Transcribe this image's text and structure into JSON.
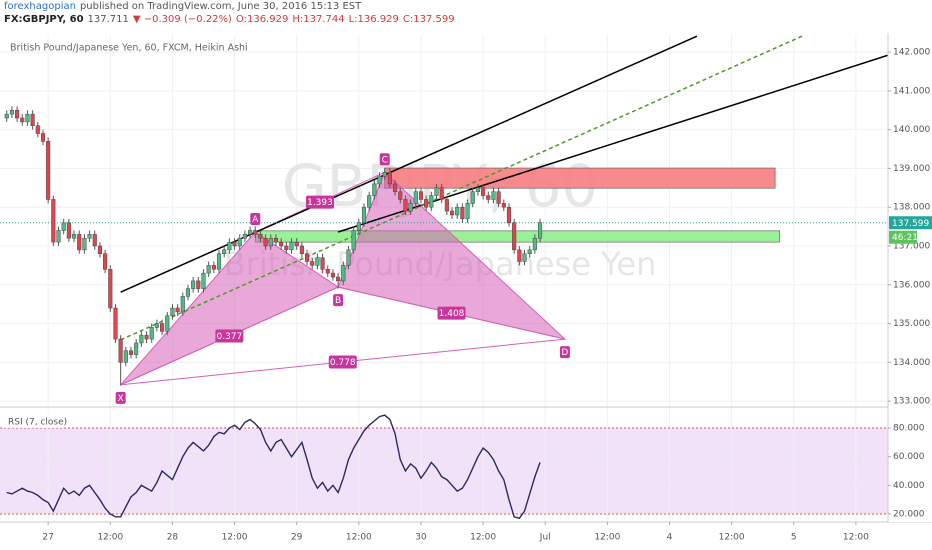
{
  "chart_data": {
    "type": "candlestick",
    "author": "forexhagopian",
    "published": "published on TradingView.com, June 30, 2016 15:13 EST",
    "symbol": "FX:GBPJPY, 60",
    "last": "137.711",
    "change": "▼ −0.309 (−0.22%)",
    "ohlc_text": [
      "O:136.929",
      "H:137.744",
      "L:136.929",
      "C:137.599"
    ],
    "title": "British Pound/Japanese Yen, 60, FXCM, Heikin Ashi",
    "watermark": [
      "GBPJPY, 60",
      "British Pound/Japanese Yen"
    ],
    "xlim": [
      -9.3,
      162.2
    ],
    "xticks": [
      {
        "value": 0,
        "label": "27"
      },
      {
        "value": 12,
        "label": "12:00"
      },
      {
        "value": 24,
        "label": "28"
      },
      {
        "value": 36,
        "label": "12:00"
      },
      {
        "value": 48,
        "label": "29"
      },
      {
        "value": 60,
        "label": "12:00"
      },
      {
        "value": 72,
        "label": "30"
      },
      {
        "value": 84,
        "label": "12:00"
      },
      {
        "value": 96,
        "label": "Jul"
      },
      {
        "value": 108,
        "label": "12:00"
      },
      {
        "value": 120,
        "label": "4"
      },
      {
        "value": 132,
        "label": "12:00"
      },
      {
        "value": 144,
        "label": "5"
      },
      {
        "value": 156,
        "label": "12:00"
      }
    ],
    "ylim": [
      132.9,
      142.44
    ],
    "yticks": [
      {
        "value": 133,
        "label": "133.000"
      },
      {
        "value": 134,
        "label": "134.000"
      },
      {
        "value": 135,
        "label": "135.000"
      },
      {
        "value": 136,
        "label": "136.000"
      },
      {
        "value": 137,
        "label": "137.000"
      },
      {
        "value": 138,
        "label": "138.000"
      },
      {
        "value": 139,
        "label": "139.000"
      },
      {
        "value": 140,
        "label": "140.000"
      },
      {
        "value": 141,
        "label": "141.000"
      },
      {
        "value": 142,
        "label": "142.000"
      }
    ],
    "grid": true,
    "up_color": "#53b987",
    "down_color": "#e0444f",
    "wick_color": "#555555",
    "x": [
      -8,
      -7,
      -6,
      -5,
      -4,
      -3,
      -2,
      -1,
      0,
      1,
      2,
      3,
      4,
      5,
      6,
      7,
      8,
      9,
      10,
      11,
      12,
      13,
      14,
      15,
      16,
      17,
      18,
      19,
      20,
      21,
      22,
      23,
      24,
      25,
      26,
      27,
      28,
      29,
      30,
      31,
      32,
      33,
      34,
      35,
      36,
      37,
      38,
      39,
      40,
      41,
      42,
      43,
      44,
      45,
      46,
      47,
      48,
      49,
      50,
      51,
      52,
      53,
      54,
      55,
      56,
      57,
      58,
      59,
      60,
      61,
      62,
      63,
      64,
      65,
      66,
      67,
      68,
      69,
      70,
      71,
      72,
      73,
      74,
      75,
      76,
      77,
      78,
      79,
      80,
      81,
      82,
      83,
      84,
      85,
      86,
      87,
      88,
      89,
      90,
      91,
      92,
      93,
      94,
      95
    ],
    "open": [
      140.3,
      140.4,
      140.5,
      140.3,
      140.2,
      140.4,
      140.1,
      139.9,
      139.7,
      138.2,
      137.1,
      137.4,
      137.6,
      137.2,
      137.3,
      136.9,
      137.2,
      137.3,
      137.0,
      136.8,
      136.4,
      135.4,
      134.6,
      134.0,
      134.3,
      134.2,
      134.5,
      134.7,
      134.6,
      134.9,
      135.0,
      134.8,
      135.2,
      135.4,
      135.3,
      135.7,
      135.9,
      136.1,
      135.9,
      136.3,
      136.5,
      136.4,
      136.8,
      136.9,
      137.1,
      137.0,
      137.2,
      137.3,
      137.4,
      137.3,
      137.2,
      137.0,
      137.2,
      137.1,
      137.0,
      136.9,
      137.1,
      137.0,
      136.8,
      136.6,
      136.5,
      136.7,
      136.4,
      136.3,
      136.2,
      136.1,
      136.5,
      136.9,
      137.4,
      137.6,
      138.0,
      138.3,
      138.6,
      138.8,
      138.9,
      138.6,
      138.4,
      138.2,
      137.9,
      138.1,
      138.4,
      138.2,
      138.0,
      138.3,
      138.5,
      138.2,
      137.9,
      137.8,
      138.0,
      137.7,
      138.1,
      138.4,
      138.5,
      138.3,
      138.2,
      138.4,
      138.1,
      138.0,
      137.6,
      136.9,
      136.6,
      136.8,
      136.9,
      137.2
    ],
    "high": [
      140.5,
      140.6,
      140.6,
      140.4,
      140.5,
      140.5,
      140.2,
      140.0,
      139.8,
      138.3,
      137.5,
      137.7,
      137.7,
      137.4,
      137.4,
      137.3,
      137.4,
      137.4,
      137.1,
      136.9,
      136.5,
      135.5,
      134.7,
      134.4,
      134.4,
      134.6,
      134.8,
      134.8,
      135.0,
      135.1,
      135.1,
      135.3,
      135.5,
      135.5,
      135.8,
      136.0,
      136.2,
      136.2,
      136.4,
      136.6,
      136.6,
      136.9,
      137.0,
      137.2,
      137.2,
      137.3,
      137.4,
      137.5,
      137.5,
      137.4,
      137.3,
      137.3,
      137.3,
      137.2,
      137.1,
      137.2,
      137.2,
      137.1,
      136.9,
      136.7,
      136.8,
      136.8,
      136.5,
      136.4,
      136.3,
      136.6,
      137.0,
      137.5,
      137.7,
      138.1,
      138.4,
      138.7,
      138.9,
      139.0,
      139.0,
      138.7,
      138.5,
      138.3,
      138.2,
      138.5,
      138.5,
      138.3,
      138.4,
      138.6,
      138.6,
      138.3,
      138.0,
      138.1,
      138.1,
      138.2,
      138.5,
      138.6,
      138.6,
      138.4,
      138.5,
      138.5,
      138.2,
      138.1,
      137.7,
      137.0,
      136.9,
      137.0,
      137.3,
      137.7
    ],
    "low": [
      140.2,
      140.3,
      140.2,
      140.1,
      140.1,
      140.0,
      139.8,
      139.6,
      138.1,
      137.0,
      137.0,
      137.3,
      137.1,
      137.1,
      136.8,
      136.8,
      137.1,
      136.9,
      136.7,
      136.3,
      135.3,
      134.5,
      133.4,
      133.9,
      134.1,
      134.1,
      134.4,
      134.5,
      134.5,
      134.8,
      134.7,
      134.7,
      135.1,
      135.2,
      135.2,
      135.6,
      135.8,
      135.8,
      135.8,
      136.2,
      136.3,
      136.3,
      136.7,
      136.8,
      136.9,
      136.9,
      137.1,
      137.2,
      137.2,
      137.1,
      136.9,
      136.9,
      137.0,
      136.9,
      136.8,
      136.8,
      136.9,
      136.7,
      136.5,
      136.4,
      136.4,
      136.3,
      136.2,
      136.1,
      135.9,
      136.0,
      136.4,
      136.8,
      137.3,
      137.5,
      137.9,
      138.2,
      138.5,
      138.7,
      138.5,
      138.3,
      138.1,
      137.8,
      137.8,
      138.0,
      138.1,
      137.9,
      137.9,
      138.2,
      138.1,
      137.8,
      137.7,
      137.7,
      137.6,
      137.6,
      138.0,
      138.3,
      138.2,
      138.1,
      138.1,
      138.0,
      137.9,
      137.5,
      136.8,
      136.5,
      136.5,
      136.7,
      136.8,
      137.1
    ],
    "close": [
      140.4,
      140.5,
      140.3,
      140.2,
      140.4,
      140.1,
      139.9,
      139.7,
      138.2,
      137.1,
      137.4,
      137.6,
      137.2,
      137.3,
      136.9,
      137.2,
      137.3,
      137.0,
      136.8,
      136.4,
      135.4,
      134.6,
      134.0,
      134.3,
      134.2,
      134.5,
      134.7,
      134.6,
      134.9,
      135.0,
      134.8,
      135.2,
      135.4,
      135.3,
      135.7,
      135.9,
      136.1,
      135.9,
      136.3,
      136.5,
      136.4,
      136.8,
      136.9,
      137.1,
      137.0,
      137.2,
      137.3,
      137.4,
      137.3,
      137.2,
      137.0,
      137.2,
      137.1,
      137.0,
      136.9,
      137.1,
      137.0,
      136.8,
      136.6,
      136.5,
      136.7,
      136.4,
      136.3,
      136.2,
      136.1,
      136.5,
      136.9,
      137.4,
      137.6,
      138.0,
      138.3,
      138.6,
      138.8,
      138.9,
      138.6,
      138.4,
      138.2,
      137.9,
      138.1,
      138.4,
      138.2,
      138.0,
      138.3,
      138.5,
      138.2,
      137.9,
      137.8,
      138.0,
      137.7,
      138.1,
      138.4,
      138.5,
      138.3,
      138.2,
      138.4,
      138.1,
      138.0,
      137.6,
      136.9,
      136.6,
      136.8,
      136.9,
      137.2,
      137.6
    ],
    "last_price": 137.599,
    "last_price_color": "#26a69a",
    "countdown": "46:21",
    "countdown_color": "#5cc45c",
    "zones": [
      {
        "x": [
          65,
          140.4
        ],
        "y": [
          138.49,
          139.01
        ],
        "color": "#f77c80"
      },
      {
        "x": [
          40,
          141.3
        ],
        "y": [
          137.1,
          137.39
        ],
        "color": "#8ef08a"
      }
    ],
    "lines": [
      {
        "points": [
          [
            14,
            135.81
          ],
          [
            125.3,
            142.41
          ]
        ],
        "color": "#000000",
        "dashed": false
      },
      {
        "points": [
          [
            56,
            137.36
          ],
          [
            168.3,
            142.18
          ]
        ],
        "color": "#000000",
        "dashed": false
      },
      {
        "points": [
          [
            14,
            134.58
          ],
          [
            146.1,
            142.44
          ]
        ],
        "color": "#4c9a2a",
        "dashed": true
      }
    ],
    "pattern": {
      "color": "#d660b8",
      "label_color": "#c8359d",
      "points": [
        {
          "label": "X",
          "x": 14,
          "y": 133.42
        },
        {
          "label": "A",
          "x": 40,
          "y": 137.36
        },
        {
          "label": "B",
          "x": 56,
          "y": 135.94
        },
        {
          "label": "C",
          "x": 65,
          "y": 138.9
        },
        {
          "label": "D",
          "x": 99.8,
          "y": 134.6
        }
      ],
      "ratios": [
        {
          "label": "1.393",
          "from": 1,
          "to": 3
        },
        {
          "label": "0.377",
          "from": 0,
          "to": 2
        },
        {
          "label": "1.408",
          "from": 2,
          "to": 4
        },
        {
          "label": "0.778",
          "from": 0,
          "to": 4
        }
      ]
    },
    "rsi": {
      "label": "RSI (7, close)",
      "values": [
        35,
        34,
        36,
        38,
        36,
        35,
        33,
        30,
        28,
        22,
        30,
        38,
        34,
        36,
        33,
        38,
        40,
        35,
        30,
        24,
        20,
        18,
        18,
        25,
        32,
        35,
        40,
        38,
        36,
        42,
        50,
        47,
        44,
        52,
        60,
        66,
        70,
        67,
        64,
        68,
        74,
        77,
        76,
        80,
        82,
        79,
        84,
        86,
        83,
        79,
        70,
        64,
        70,
        72,
        66,
        60,
        65,
        70,
        58,
        45,
        38,
        42,
        36,
        40,
        35,
        45,
        58,
        66,
        72,
        78,
        82,
        85,
        88,
        89,
        86,
        76,
        58,
        50,
        55,
        52,
        45,
        50,
        56,
        52,
        46,
        44,
        40,
        36,
        38,
        44,
        52,
        60,
        66,
        63,
        58,
        50,
        44,
        30,
        18,
        17,
        22,
        34,
        46,
        56
      ],
      "ylim": [
        14.4,
        94
      ],
      "yticks": [
        {
          "value": 20,
          "label": "20.000"
        },
        {
          "value": 40,
          "label": "40.000"
        },
        {
          "value": 60,
          "label": "60.000"
        },
        {
          "value": 80,
          "label": "80.000"
        }
      ],
      "band": [
        20,
        80
      ],
      "line_color": "#2a2a5e",
      "band_color": "#f1e2fa",
      "band_line_color": "#e05050"
    }
  }
}
